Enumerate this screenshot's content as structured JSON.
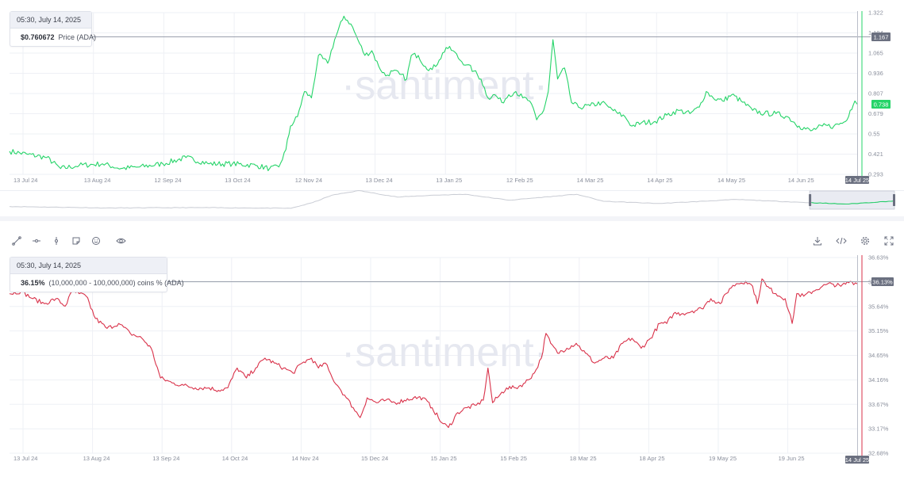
{
  "watermark": "·santiment·",
  "colors": {
    "price_line": "#26d469",
    "holders_line": "#d9324a",
    "axis_text": "#8a8f9c",
    "grid": "#eef0f5",
    "crosshair": "#9aa0ad",
    "nav_line": "#c9ccd4",
    "nav_highlight": "#22cc66"
  },
  "toolbar": {
    "left_icons": [
      "line-tool-icon",
      "horizontal-ray-icon",
      "vertical-line-icon",
      "note-icon",
      "emoji-icon",
      "eye-icon"
    ],
    "right_icons": [
      "download-icon",
      "embed-code-icon",
      "settings-gear-icon",
      "fullscreen-icon"
    ]
  },
  "top_tooltip": {
    "date": "05:30, July 14, 2025",
    "value": "$0.760672",
    "label": "Price (ADA)"
  },
  "bottom_tooltip": {
    "date": "05:30, July 14, 2025",
    "value": "36.15%",
    "label": "(10,000,000 - 100,000,000) coins % (ADA)"
  },
  "chart_data": [
    {
      "type": "line",
      "series": [
        {
          "name": "Price (ADA)",
          "x_index_range": [
            0,
            365
          ]
        }
      ],
      "x_ticks": [
        "13 Jul 24",
        "13 Aug 24",
        "12 Sep 24",
        "13 Oct 24",
        "12 Nov 24",
        "13 Dec 24",
        "13 Jan 25",
        "12 Feb 25",
        "14 Mar 25",
        "14 Apr 25",
        "14 May 25",
        "14 Jun 25"
      ],
      "x_current_label": "14 Jul 25",
      "y_ticks": [
        "1.322",
        "1.194",
        "1.065",
        "0.936",
        "0.807",
        "0.679",
        "0.55",
        "0.421",
        "0.293"
      ],
      "ylim": [
        0.293,
        1.322
      ],
      "crosshair_value": "1.167",
      "last_value": "0.738",
      "anchors": [
        [
          0,
          0.44
        ],
        [
          8,
          0.42
        ],
        [
          16,
          0.4
        ],
        [
          22,
          0.33
        ],
        [
          30,
          0.35
        ],
        [
          40,
          0.36
        ],
        [
          48,
          0.33
        ],
        [
          56,
          0.34
        ],
        [
          66,
          0.36
        ],
        [
          76,
          0.4
        ],
        [
          86,
          0.36
        ],
        [
          96,
          0.36
        ],
        [
          106,
          0.35
        ],
        [
          112,
          0.33
        ],
        [
          116,
          0.34
        ],
        [
          119,
          0.45
        ],
        [
          121,
          0.6
        ],
        [
          124,
          0.66
        ],
        [
          127,
          0.82
        ],
        [
          130,
          0.78
        ],
        [
          133,
          1.05
        ],
        [
          137,
          1.0
        ],
        [
          140,
          1.15
        ],
        [
          144,
          1.3
        ],
        [
          147,
          1.25
        ],
        [
          150,
          1.15
        ],
        [
          153,
          1.05
        ],
        [
          156,
          1.08
        ],
        [
          159,
          0.98
        ],
        [
          162,
          0.92
        ],
        [
          165,
          0.95
        ],
        [
          168,
          0.93
        ],
        [
          171,
          0.9
        ],
        [
          173,
          1.05
        ],
        [
          176,
          1.05
        ],
        [
          179,
          0.98
        ],
        [
          182,
          0.96
        ],
        [
          185,
          1.02
        ],
        [
          188,
          1.1
        ],
        [
          191,
          1.08
        ],
        [
          194,
          1.02
        ],
        [
          197,
          0.99
        ],
        [
          200,
          0.95
        ],
        [
          203,
          0.9
        ],
        [
          206,
          0.78
        ],
        [
          209,
          0.8
        ],
        [
          212,
          0.75
        ],
        [
          215,
          0.8
        ],
        [
          218,
          0.82
        ],
        [
          221,
          0.78
        ],
        [
          224,
          0.76
        ],
        [
          227,
          0.64
        ],
        [
          230,
          0.7
        ],
        [
          232,
          0.82
        ],
        [
          234,
          1.15
        ],
        [
          236,
          0.9
        ],
        [
          239,
          0.97
        ],
        [
          242,
          0.75
        ],
        [
          245,
          0.72
        ],
        [
          250,
          0.73
        ],
        [
          255,
          0.75
        ],
        [
          258,
          0.72
        ],
        [
          262,
          0.68
        ],
        [
          265,
          0.66
        ],
        [
          268,
          0.6
        ],
        [
          272,
          0.62
        ],
        [
          278,
          0.63
        ],
        [
          283,
          0.67
        ],
        [
          288,
          0.7
        ],
        [
          293,
          0.68
        ],
        [
          297,
          0.72
        ],
        [
          300,
          0.82
        ],
        [
          303,
          0.78
        ],
        [
          307,
          0.76
        ],
        [
          311,
          0.8
        ],
        [
          315,
          0.76
        ],
        [
          320,
          0.7
        ],
        [
          325,
          0.68
        ],
        [
          330,
          0.68
        ],
        [
          335,
          0.66
        ],
        [
          340,
          0.6
        ],
        [
          345,
          0.57
        ],
        [
          350,
          0.6
        ],
        [
          355,
          0.6
        ],
        [
          360,
          0.63
        ],
        [
          362,
          0.7
        ],
        [
          364,
          0.76
        ],
        [
          365,
          0.74
        ]
      ]
    },
    {
      "type": "line",
      "series": [
        {
          "name": "(10,000,000 - 100,000,000) coins % (ADA)",
          "x_index_range": [
            0,
            365
          ]
        }
      ],
      "x_ticks": [
        "13 Jul 24",
        "13 Aug 24",
        "13 Sep 24",
        "14 Oct 24",
        "14 Nov 24",
        "15 Dec 24",
        "15 Jan 25",
        "15 Feb 25",
        "18 Mar 25",
        "18 Apr 25",
        "19 May 25",
        "19 Jun 25"
      ],
      "x_current_label": "14 Jul 25",
      "y_ticks": [
        "36.63%",
        "36.13%",
        "35.64%",
        "35.15%",
        "34.65%",
        "34.16%",
        "33.67%",
        "33.17%",
        "32.68%"
      ],
      "ylim": [
        32.68,
        36.63
      ],
      "crosshair_value": "36.13%",
      "anchors": [
        [
          0,
          35.9
        ],
        [
          5,
          35.95
        ],
        [
          10,
          35.8
        ],
        [
          15,
          35.7
        ],
        [
          20,
          35.8
        ],
        [
          24,
          35.65
        ],
        [
          27,
          35.95
        ],
        [
          30,
          35.9
        ],
        [
          33,
          35.85
        ],
        [
          37,
          35.4
        ],
        [
          42,
          35.2
        ],
        [
          47,
          35.3
        ],
        [
          52,
          35.1
        ],
        [
          57,
          35.0
        ],
        [
          61,
          34.8
        ],
        [
          65,
          34.2
        ],
        [
          70,
          34.1
        ],
        [
          75,
          34.05
        ],
        [
          80,
          34.0
        ],
        [
          86,
          34.0
        ],
        [
          90,
          33.95
        ],
        [
          94,
          34.0
        ],
        [
          98,
          34.4
        ],
        [
          102,
          34.2
        ],
        [
          106,
          34.4
        ],
        [
          110,
          34.6
        ],
        [
          114,
          34.5
        ],
        [
          118,
          34.4
        ],
        [
          122,
          34.3
        ],
        [
          126,
          34.5
        ],
        [
          130,
          34.6
        ],
        [
          133,
          34.4
        ],
        [
          136,
          34.5
        ],
        [
          139,
          34.2
        ],
        [
          142,
          34.0
        ],
        [
          145,
          33.8
        ],
        [
          148,
          33.6
        ],
        [
          151,
          33.4
        ],
        [
          154,
          33.8
        ],
        [
          158,
          33.7
        ],
        [
          162,
          33.75
        ],
        [
          166,
          33.7
        ],
        [
          170,
          33.75
        ],
        [
          174,
          33.8
        ],
        [
          178,
          33.8
        ],
        [
          182,
          33.6
        ],
        [
          186,
          33.3
        ],
        [
          189,
          33.2
        ],
        [
          193,
          33.5
        ],
        [
          197,
          33.6
        ],
        [
          201,
          33.65
        ],
        [
          204,
          33.75
        ],
        [
          206,
          34.4
        ],
        [
          208,
          33.7
        ],
        [
          210,
          33.8
        ],
        [
          214,
          34.0
        ],
        [
          218,
          34.0
        ],
        [
          222,
          34.1
        ],
        [
          226,
          34.3
        ],
        [
          229,
          34.6
        ],
        [
          231,
          35.1
        ],
        [
          233,
          34.9
        ],
        [
          236,
          34.7
        ],
        [
          240,
          34.8
        ],
        [
          244,
          34.9
        ],
        [
          248,
          34.7
        ],
        [
          252,
          34.5
        ],
        [
          256,
          34.6
        ],
        [
          260,
          34.6
        ],
        [
          264,
          34.9
        ],
        [
          268,
          35.0
        ],
        [
          272,
          34.8
        ],
        [
          276,
          35.0
        ],
        [
          280,
          35.3
        ],
        [
          283,
          35.3
        ],
        [
          286,
          35.5
        ],
        [
          290,
          35.5
        ],
        [
          294,
          35.55
        ],
        [
          298,
          35.6
        ],
        [
          302,
          35.8
        ],
        [
          306,
          35.7
        ],
        [
          310,
          36.0
        ],
        [
          313,
          36.1
        ],
        [
          317,
          36.15
        ],
        [
          320,
          36.05
        ],
        [
          322,
          35.7
        ],
        [
          324,
          36.2
        ],
        [
          326,
          36.05
        ],
        [
          330,
          35.9
        ],
        [
          334,
          35.8
        ],
        [
          337,
          35.3
        ],
        [
          339,
          35.9
        ],
        [
          342,
          35.85
        ],
        [
          346,
          35.95
        ],
        [
          350,
          36.05
        ],
        [
          354,
          36.1
        ],
        [
          358,
          36.05
        ],
        [
          362,
          36.15
        ],
        [
          365,
          36.1
        ]
      ]
    }
  ],
  "navigator": {
    "anchors": [
      [
        0,
        0.44
      ],
      [
        40,
        0.36
      ],
      [
        80,
        0.38
      ],
      [
        116,
        0.34
      ],
      [
        125,
        0.65
      ],
      [
        133,
        1.05
      ],
      [
        144,
        1.3
      ],
      [
        160,
        0.95
      ],
      [
        175,
        1.05
      ],
      [
        188,
        1.1
      ],
      [
        206,
        0.78
      ],
      [
        234,
        1.1
      ],
      [
        245,
        0.72
      ],
      [
        268,
        0.6
      ],
      [
        300,
        0.82
      ],
      [
        320,
        0.7
      ],
      [
        345,
        0.57
      ],
      [
        365,
        0.74
      ]
    ],
    "window_start_index": 330
  }
}
